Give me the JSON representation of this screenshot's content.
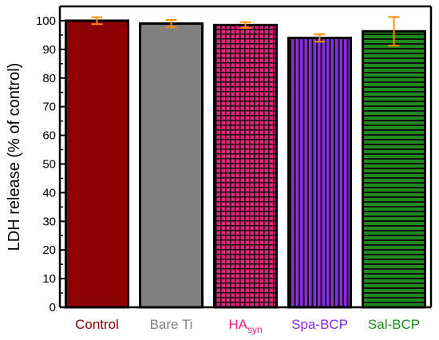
{
  "chart_data": {
    "type": "bar",
    "title": "",
    "xlabel": "",
    "ylabel": "LDH release (% of control)",
    "ylim": [
      0,
      105
    ],
    "yticks": [
      0,
      10,
      20,
      30,
      40,
      50,
      60,
      70,
      80,
      90,
      100
    ],
    "categories": [
      {
        "label": "Control",
        "sub": "",
        "color": "#8b0000",
        "pattern": "solid"
      },
      {
        "label": "Bare Ti",
        "sub": "",
        "color": "#808080",
        "pattern": "solid"
      },
      {
        "label": "HA",
        "sub": "syn",
        "color": "#e8237d",
        "pattern": "grid"
      },
      {
        "label": "Spa-BCP",
        "sub": "",
        "color": "#8a2be2",
        "pattern": "vertical-stripes"
      },
      {
        "label": "Sal-BCP",
        "sub": "",
        "color": "#1e8a1e",
        "pattern": "horizontal-stripes"
      }
    ],
    "values": [
      100,
      99,
      98.5,
      94,
      96.3
    ],
    "errors": [
      1.2,
      1.3,
      1.0,
      1.3,
      5.0
    ],
    "error_color": "#ff8c00",
    "grid": false,
    "legend": "none"
  }
}
